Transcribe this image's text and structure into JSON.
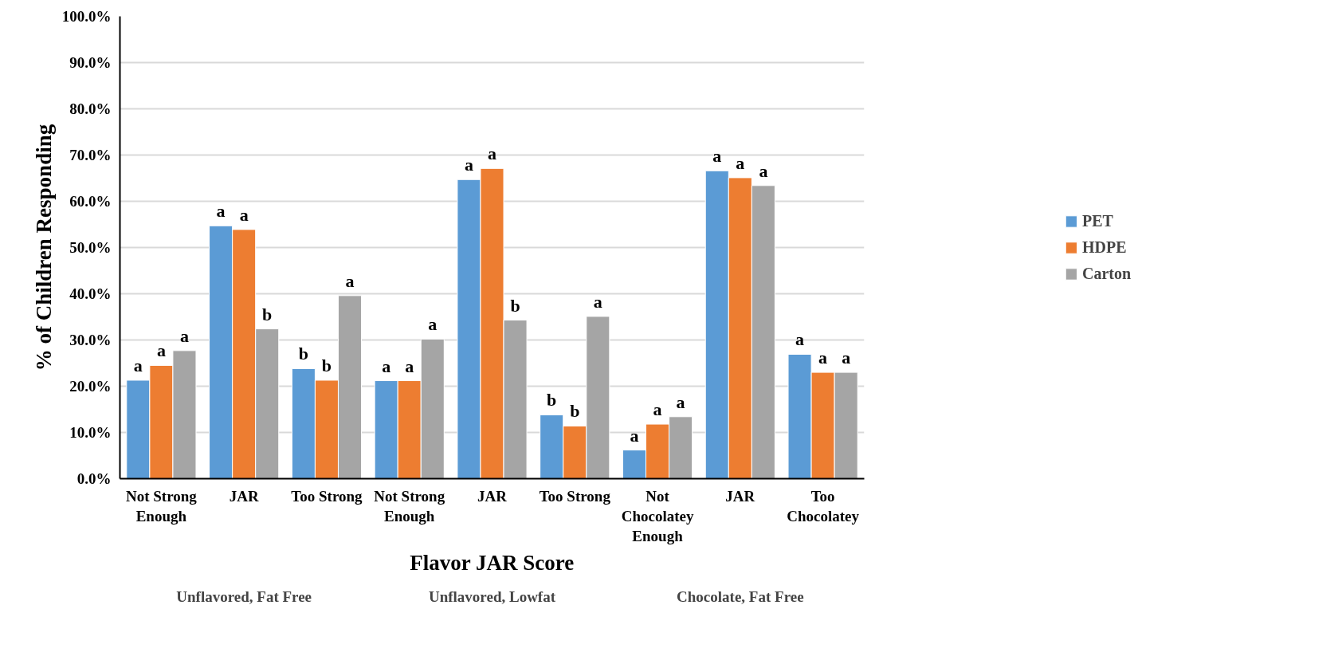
{
  "chart_data": {
    "type": "bar",
    "xlabel": "Flavor JAR Score",
    "ylabel": "% of Children Responding",
    "categories": [
      "Not Strong Enough",
      "JAR",
      "Too Strong",
      "Not Strong Enough",
      "JAR",
      "Too Strong",
      "Not Chocolatey Enough",
      "JAR",
      "Too Chocolatey"
    ],
    "annotations": [
      "Unflavored, Fat Free",
      "Unflavored, Lowfat",
      "Chocolate, Fat Free"
    ],
    "series": [
      {
        "name": "PET",
        "color": "#5b9bd5",
        "values": [
          21.3,
          54.7,
          23.8,
          21.2,
          64.7,
          13.8,
          6.2,
          66.6,
          26.9
        ],
        "value_labels": [
          "a",
          "a",
          "b",
          "a",
          "a",
          "b",
          "a",
          "a",
          "a"
        ]
      },
      {
        "name": "HDPE",
        "color": "#ed7d31",
        "values": [
          24.5,
          53.9,
          21.3,
          21.2,
          67.1,
          11.4,
          11.8,
          65.1,
          23.0
        ],
        "value_labels": [
          "a",
          "a",
          "b",
          "a",
          "a",
          "b",
          "a",
          "a",
          "a"
        ]
      },
      {
        "name": "Carton",
        "color": "#a5a5a5",
        "values": [
          27.7,
          32.4,
          39.6,
          30.2,
          34.3,
          35.1,
          13.4,
          63.4,
          23.0
        ],
        "value_labels": [
          "a",
          "b",
          "a",
          "a",
          "b",
          "a",
          "a",
          "a",
          "a"
        ]
      }
    ],
    "ylim": [
      0,
      100
    ],
    "yticks": [
      {
        "value": 0,
        "label": "0.0%"
      },
      {
        "value": 10,
        "label": "10.0%"
      },
      {
        "value": 20,
        "label": "20.0%"
      },
      {
        "value": 30,
        "label": "30.0%"
      },
      {
        "value": 40,
        "label": "40.0%"
      },
      {
        "value": 50,
        "label": "50.0%"
      },
      {
        "value": 60,
        "label": "60.0%"
      },
      {
        "value": 70,
        "label": "70.0%"
      },
      {
        "value": 80,
        "label": "80.0%"
      },
      {
        "value": 90,
        "label": "90.0%"
      },
      {
        "value": 100,
        "label": "100.0%"
      }
    ],
    "grid": "y",
    "legend": "right"
  }
}
